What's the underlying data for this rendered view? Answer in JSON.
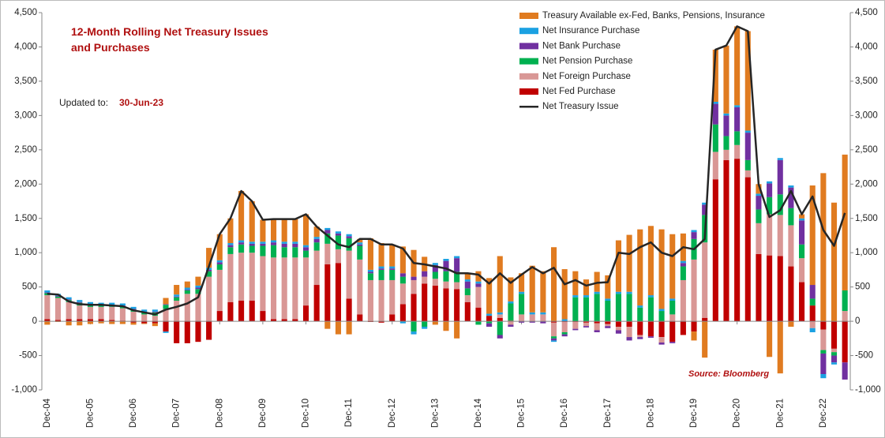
{
  "chart_data": {
    "type": "bar",
    "stacked": true,
    "title": "12-Month Rolling Net Treasury Issues and Purchases",
    "annotations": {
      "updated_label": "Updated to:",
      "updated_date": "30-Jun-23",
      "source": "Source: Bloomberg"
    },
    "categories": [
      "Dec-04",
      null,
      null,
      null,
      "Dec-05",
      null,
      null,
      null,
      "Dec-06",
      null,
      null,
      null,
      "Dec-07",
      null,
      null,
      null,
      "Dec-08",
      null,
      null,
      null,
      "Dec-09",
      null,
      null,
      null,
      "Dec-10",
      null,
      null,
      null,
      "Dec-11",
      null,
      null,
      null,
      "Dec-12",
      null,
      null,
      null,
      "Dec-13",
      null,
      null,
      null,
      "Dec-14",
      null,
      null,
      null,
      "Dec-15",
      null,
      null,
      null,
      "Dec-16",
      null,
      null,
      null,
      "Dec-17",
      null,
      null,
      null,
      "Dec-18",
      null,
      null,
      null,
      "Dec-19",
      null,
      null,
      null,
      "Dec-20",
      null,
      null,
      null,
      "Dec-21",
      null,
      null,
      null,
      "Dec-22",
      null,
      null
    ],
    "series": [
      {
        "name": "Net Fed Purchase",
        "color": "#c00000",
        "values": [
          30,
          20,
          30,
          30,
          30,
          30,
          20,
          10,
          -20,
          -30,
          -30,
          -150,
          -320,
          -320,
          -300,
          -270,
          150,
          280,
          300,
          300,
          150,
          30,
          30,
          30,
          230,
          530,
          830,
          850,
          330,
          100,
          -10,
          -20,
          100,
          250,
          400,
          550,
          520,
          480,
          470,
          280,
          200,
          80,
          50,
          10,
          0,
          0,
          0,
          -20,
          -10,
          -10,
          -20,
          -30,
          -40,
          -80,
          -80,
          -200,
          -220,
          -230,
          -300,
          -200,
          -150,
          50,
          2070,
          2350,
          2370,
          2100,
          980,
          960,
          950,
          800,
          570,
          230,
          -120,
          -400,
          -600
        ]
      },
      {
        "name": "Net Foreign Purchase",
        "color": "#d99795",
        "values": [
          350,
          320,
          250,
          200,
          180,
          180,
          190,
          180,
          140,
          100,
          80,
          180,
          300,
          400,
          400,
          650,
          600,
          700,
          700,
          700,
          800,
          900,
          900,
          900,
          700,
          500,
          300,
          200,
          700,
          800,
          600,
          600,
          500,
          300,
          200,
          100,
          100,
          100,
          100,
          100,
          300,
          0,
          50,
          -50,
          100,
          100,
          100,
          -200,
          -150,
          -100,
          -50,
          -100,
          -30,
          -50,
          -150,
          -30,
          0,
          -80,
          100,
          600,
          900,
          1100,
          400,
          150,
          200,
          100,
          450,
          600,
          600,
          600,
          350,
          -100,
          -300,
          -50,
          150
        ]
      },
      {
        "name": "Net Pension Purchase",
        "color": "#00b050",
        "values": [
          30,
          20,
          30,
          40,
          30,
          20,
          20,
          30,
          30,
          30,
          50,
          60,
          50,
          50,
          70,
          80,
          80,
          100,
          120,
          100,
          150,
          180,
          150,
          150,
          100,
          120,
          150,
          200,
          180,
          200,
          100,
          150,
          150,
          100,
          -150,
          -80,
          100,
          150,
          150,
          100,
          -50,
          -30,
          -200,
          250,
          300,
          0,
          0,
          -30,
          -30,
          350,
          350,
          400,
          300,
          400,
          400,
          200,
          350,
          150,
          200,
          200,
          300,
          400,
          400,
          200,
          200,
          150,
          200,
          250,
          300,
          250,
          200,
          100,
          -50,
          -50,
          300
        ]
      },
      {
        "name": "Net Bank Purchase",
        "color": "#7030a0",
        "values": [
          10,
          10,
          10,
          10,
          10,
          10,
          10,
          10,
          10,
          10,
          10,
          10,
          10,
          10,
          20,
          20,
          30,
          30,
          30,
          30,
          30,
          40,
          50,
          50,
          50,
          50,
          50,
          30,
          30,
          20,
          20,
          20,
          20,
          50,
          50,
          80,
          100,
          150,
          200,
          100,
          50,
          -50,
          -50,
          -30,
          -20,
          -20,
          -30,
          -30,
          -30,
          -20,
          -20,
          -30,
          -30,
          -50,
          -50,
          -30,
          -20,
          -30,
          -20,
          50,
          100,
          150,
          300,
          300,
          350,
          400,
          200,
          200,
          500,
          300,
          350,
          200,
          -300,
          -100,
          -250
        ]
      },
      {
        "name": "Net Insurance Purchase",
        "color": "#1ba1e2",
        "values": [
          30,
          30,
          30,
          30,
          30,
          30,
          30,
          30,
          30,
          30,
          30,
          -20,
          30,
          30,
          30,
          30,
          30,
          30,
          30,
          30,
          30,
          30,
          30,
          30,
          30,
          30,
          30,
          30,
          30,
          30,
          30,
          30,
          30,
          -30,
          -40,
          -30,
          30,
          30,
          30,
          30,
          30,
          30,
          30,
          30,
          30,
          30,
          30,
          -20,
          30,
          30,
          30,
          30,
          30,
          30,
          30,
          30,
          30,
          30,
          30,
          30,
          30,
          30,
          30,
          30,
          30,
          30,
          30,
          30,
          30,
          30,
          30,
          -60,
          -60,
          -30,
          0
        ]
      },
      {
        "name": "Treasury Available ex-Fed, Banks, Pensions, Insurance",
        "color": "#e07b20",
        "values": [
          -50,
          -10,
          -60,
          -60,
          -40,
          -30,
          -40,
          -40,
          -30,
          -10,
          -40,
          90,
          140,
          90,
          130,
          290,
          380,
          360,
          720,
          590,
          320,
          310,
          330,
          330,
          450,
          150,
          -110,
          -190,
          -190,
          50,
          460,
          340,
          320,
          390,
          390,
          210,
          -50,
          -140,
          -250,
          90,
          150,
          520,
          820,
          350,
          270,
          680,
          600,
          1080,
          730,
          350,
          230,
          290,
          340,
          750,
          830,
          1110,
          1010,
          1160,
          940,
          400,
          -130,
          -530,
          760,
          990,
          1150,
          1450,
          140,
          -520,
          -760,
          -80,
          60,
          1450,
          2160,
          1730,
          1980
        ]
      },
      {
        "name": "Net Treasury Issue",
        "type": "line",
        "color": "#262626",
        "values": [
          400,
          390,
          290,
          250,
          240,
          240,
          230,
          220,
          160,
          130,
          100,
          170,
          210,
          260,
          350,
          800,
          1270,
          1500,
          1900,
          1750,
          1480,
          1490,
          1490,
          1490,
          1560,
          1380,
          1250,
          1120,
          1080,
          1200,
          1200,
          1120,
          1120,
          1060,
          850,
          830,
          800,
          770,
          700,
          700,
          680,
          550,
          700,
          560,
          680,
          790,
          700,
          780,
          540,
          600,
          520,
          560,
          570,
          1000,
          980,
          1080,
          1150,
          1000,
          950,
          1080,
          1050,
          1200,
          3960,
          4020,
          4300,
          4230,
          2000,
          1520,
          1620,
          1900,
          1560,
          1820,
          1330,
          1100,
          1580
        ]
      }
    ],
    "ylim": [
      -1000,
      4500
    ],
    "yticks": [
      {
        "value": -1000,
        "label": "-1,000"
      },
      -500,
      0,
      500,
      {
        "value": 1000,
        "label": "1,000"
      },
      {
        "value": 1500,
        "label": "1,500"
      },
      {
        "value": 2000,
        "label": "2,000"
      },
      {
        "value": 2500,
        "label": "2,500"
      },
      {
        "value": 3000,
        "label": "3,000"
      },
      {
        "value": 3500,
        "label": "3,500"
      },
      {
        "value": 4000,
        "label": "4,000"
      },
      {
        "value": 4500,
        "label": "4,500"
      }
    ],
    "y2lim": [
      -1000,
      4500
    ],
    "y2ticks": [
      {
        "value": -1000,
        "label": "-1,000"
      },
      -500,
      0,
      500,
      {
        "value": 1000,
        "label": "1,000"
      },
      {
        "value": 1500,
        "label": "1,500"
      },
      {
        "value": 2000,
        "label": "2,000"
      },
      {
        "value": 2500,
        "label": "2,500"
      },
      {
        "value": 3000,
        "label": "3,000"
      },
      {
        "value": 3500,
        "label": "3,500"
      },
      {
        "value": 4000,
        "label": "4,000"
      },
      {
        "value": 4500,
        "label": "4,500"
      }
    ],
    "grid": false,
    "legend": "top-right"
  }
}
